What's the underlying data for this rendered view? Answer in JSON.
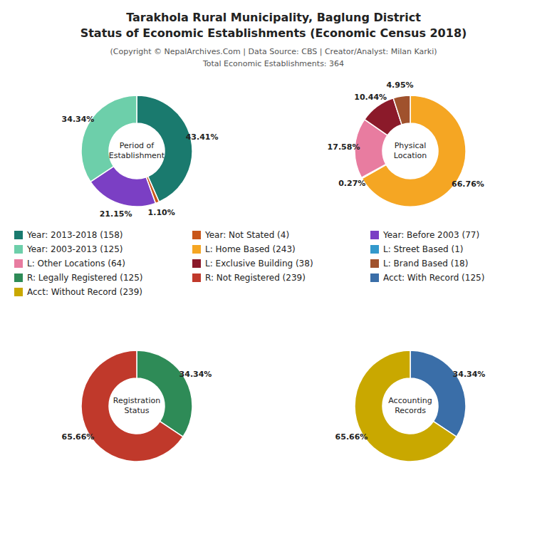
{
  "title": "Tarakhola Rural Municipality, Baglung District\nStatus of Economic Establishments (Economic Census 2018)",
  "subtitle": "(Copyright © NepalArchives.Com | Data Source: CBS | Creator/Analyst: Milan Karki)\nTotal Economic Establishments: 364",
  "chart_data": [
    {
      "type": "pie",
      "title": "Period of\nEstablishment",
      "categories": [
        "Year: 2013-2018 (158)",
        "Year: Not Stated (4)",
        "Year: Before 2003 (77)",
        "Year: 2003-2013 (125)"
      ],
      "values": [
        43.41,
        1.1,
        21.15,
        34.34
      ],
      "value_labels": [
        "43.41%",
        "1.10%",
        "21.15%",
        "34.34%"
      ],
      "colors": [
        "#1a7a6e",
        "#c8561a",
        "#7b3fc4",
        "#6dcfaa"
      ],
      "data_labels": true
    },
    {
      "type": "pie",
      "title": "Physical\nLocation",
      "categories": [
        "L: Home Based (243)",
        "L: Street Based (1)",
        "L: Other Locations (64)",
        "L: Exclusive Building (38)",
        "L: Brand Based (18)"
      ],
      "values": [
        66.76,
        0.27,
        17.58,
        10.44,
        4.95
      ],
      "value_labels": [
        "66.76%",
        "0.27%",
        "17.58%",
        "10.44%",
        "4.95%"
      ],
      "colors": [
        "#f5a623",
        "#3399cc",
        "#e87ca0",
        "#8b1a2a",
        "#a0522d"
      ],
      "data_labels": true
    },
    {
      "type": "pie",
      "title": "Registration\nStatus",
      "categories": [
        "R: Legally Registered (125)",
        "R: Not Registered (239)"
      ],
      "values": [
        34.34,
        65.66
      ],
      "value_labels": [
        "34.34%",
        "65.66%"
      ],
      "colors": [
        "#2e8b57",
        "#c0392b"
      ],
      "data_labels": true
    },
    {
      "type": "pie",
      "title": "Accounting\nRecords",
      "categories": [
        "Acct: With Record (125)",
        "Acct: Without Record (239)"
      ],
      "values": [
        34.34,
        65.66
      ],
      "value_labels": [
        "34.34%",
        "65.66%"
      ],
      "colors": [
        "#3a6ea8",
        "#c9a800"
      ],
      "data_labels": true
    }
  ]
}
